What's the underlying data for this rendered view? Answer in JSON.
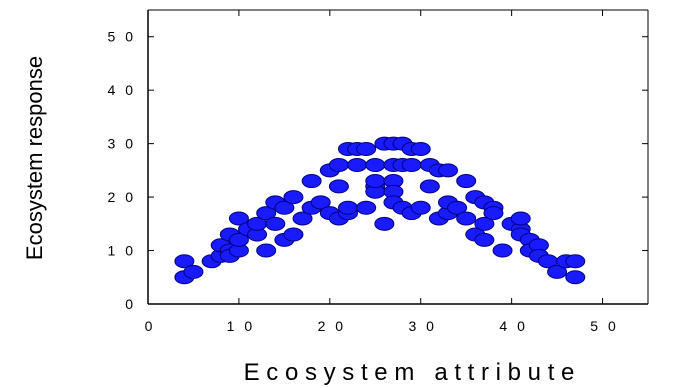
{
  "chart_data": {
    "type": "scatter",
    "title": "",
    "xlabel": "E c o s y s t e m   a t t r i b u t e",
    "ylabel": "Ecosystem response",
    "xlim": [
      0,
      55
    ],
    "ylim": [
      0,
      55
    ],
    "xticks": [
      "0",
      "1 0",
      "2 0",
      "3 0",
      "4 0",
      "5 0"
    ],
    "xtick_values": [
      0,
      10,
      20,
      30,
      40,
      50
    ],
    "yticks": [
      "0",
      "1 0",
      "2 0",
      "3 0",
      "4 0",
      "5 0"
    ],
    "ytick_values": [
      0,
      10,
      20,
      30,
      40,
      50
    ],
    "grid": false,
    "marker_color": "#1a1aff",
    "marker_edge": "#000080",
    "series": [
      {
        "points": [
          [
            4,
            8
          ],
          [
            4,
            5
          ],
          [
            5,
            6
          ],
          [
            7,
            8
          ],
          [
            8,
            9
          ],
          [
            8,
            11
          ],
          [
            9,
            10
          ],
          [
            9,
            13
          ],
          [
            9,
            9
          ],
          [
            10,
            16
          ],
          [
            10,
            10
          ],
          [
            10,
            12
          ],
          [
            11,
            14
          ],
          [
            12,
            13
          ],
          [
            12,
            15
          ],
          [
            13,
            17
          ],
          [
            13,
            10
          ],
          [
            14,
            19
          ],
          [
            14,
            15
          ],
          [
            15,
            12
          ],
          [
            15,
            18
          ],
          [
            16,
            13
          ],
          [
            16,
            20
          ],
          [
            17,
            16
          ],
          [
            18,
            23
          ],
          [
            18,
            18
          ],
          [
            19,
            19
          ],
          [
            20,
            17
          ],
          [
            20,
            25
          ],
          [
            21,
            16
          ],
          [
            21,
            22
          ],
          [
            21,
            26
          ],
          [
            22,
            17
          ],
          [
            22,
            18
          ],
          [
            22,
            29
          ],
          [
            23,
            26
          ],
          [
            23,
            29
          ],
          [
            24,
            18
          ],
          [
            24,
            29
          ],
          [
            25,
            22
          ],
          [
            25,
            21
          ],
          [
            25,
            23
          ],
          [
            25,
            26
          ],
          [
            26,
            30
          ],
          [
            26,
            15
          ],
          [
            27,
            30
          ],
          [
            27,
            26
          ],
          [
            27,
            23
          ],
          [
            27,
            21
          ],
          [
            27,
            19
          ],
          [
            28,
            30
          ],
          [
            28,
            18
          ],
          [
            28,
            26
          ],
          [
            29,
            29
          ],
          [
            29,
            26
          ],
          [
            29,
            17
          ],
          [
            30,
            18
          ],
          [
            30,
            29
          ],
          [
            31,
            26
          ],
          [
            31,
            22
          ],
          [
            32,
            25
          ],
          [
            32,
            16
          ],
          [
            33,
            17
          ],
          [
            33,
            25
          ],
          [
            33,
            19
          ],
          [
            34,
            18
          ],
          [
            35,
            16
          ],
          [
            35,
            23
          ],
          [
            36,
            13
          ],
          [
            36,
            20
          ],
          [
            37,
            19
          ],
          [
            37,
            12
          ],
          [
            37,
            15
          ],
          [
            38,
            18
          ],
          [
            38,
            17
          ],
          [
            39,
            10
          ],
          [
            40,
            15
          ],
          [
            41,
            14
          ],
          [
            41,
            16
          ],
          [
            41,
            13
          ],
          [
            42,
            12
          ],
          [
            42,
            10
          ],
          [
            43,
            11
          ],
          [
            43,
            9
          ],
          [
            44,
            8
          ],
          [
            45,
            6
          ],
          [
            46,
            8
          ],
          [
            47,
            5
          ],
          [
            47,
            8
          ]
        ]
      }
    ]
  }
}
